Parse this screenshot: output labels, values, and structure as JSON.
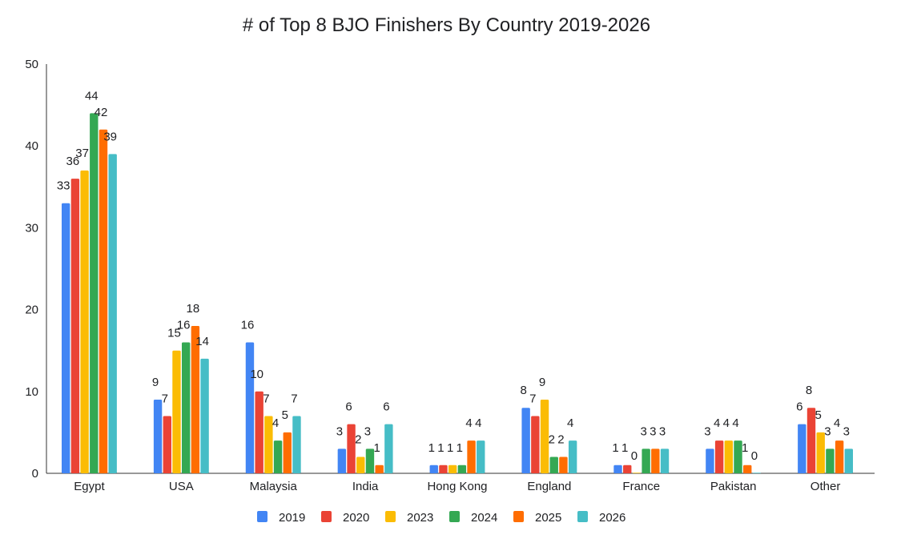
{
  "chart_data": {
    "type": "bar",
    "title": "# of Top 8 BJO Finishers By Country 2019-2026",
    "xlabel": "",
    "ylabel": "",
    "ylim": [
      0,
      50
    ],
    "yticks": [
      0,
      10,
      20,
      30,
      40,
      50
    ],
    "grid": false,
    "legend_position": "bottom",
    "categories": [
      "Egypt",
      "USA",
      "Malaysia",
      "India",
      "Hong Kong",
      "England",
      "France",
      "Pakistan",
      "Other"
    ],
    "series": [
      {
        "name": "2019",
        "color": "#4285F4",
        "values": [
          33,
          9,
          16,
          3,
          1,
          8,
          1,
          3,
          6
        ]
      },
      {
        "name": "2020",
        "color": "#EA4335",
        "values": [
          36,
          7,
          10,
          6,
          1,
          7,
          1,
          4,
          8
        ]
      },
      {
        "name": "2023",
        "color": "#FBBC04",
        "values": [
          37,
          15,
          7,
          2,
          1,
          9,
          0,
          4,
          5
        ]
      },
      {
        "name": "2024",
        "color": "#34A853",
        "values": [
          44,
          16,
          4,
          3,
          1,
          2,
          3,
          4,
          3
        ]
      },
      {
        "name": "2025",
        "color": "#FF6D01",
        "values": [
          42,
          18,
          5,
          1,
          4,
          2,
          3,
          1,
          4
        ]
      },
      {
        "name": "2026",
        "color": "#46BDC6",
        "values": [
          39,
          14,
          7,
          6,
          4,
          4,
          3,
          0,
          3
        ]
      }
    ]
  }
}
